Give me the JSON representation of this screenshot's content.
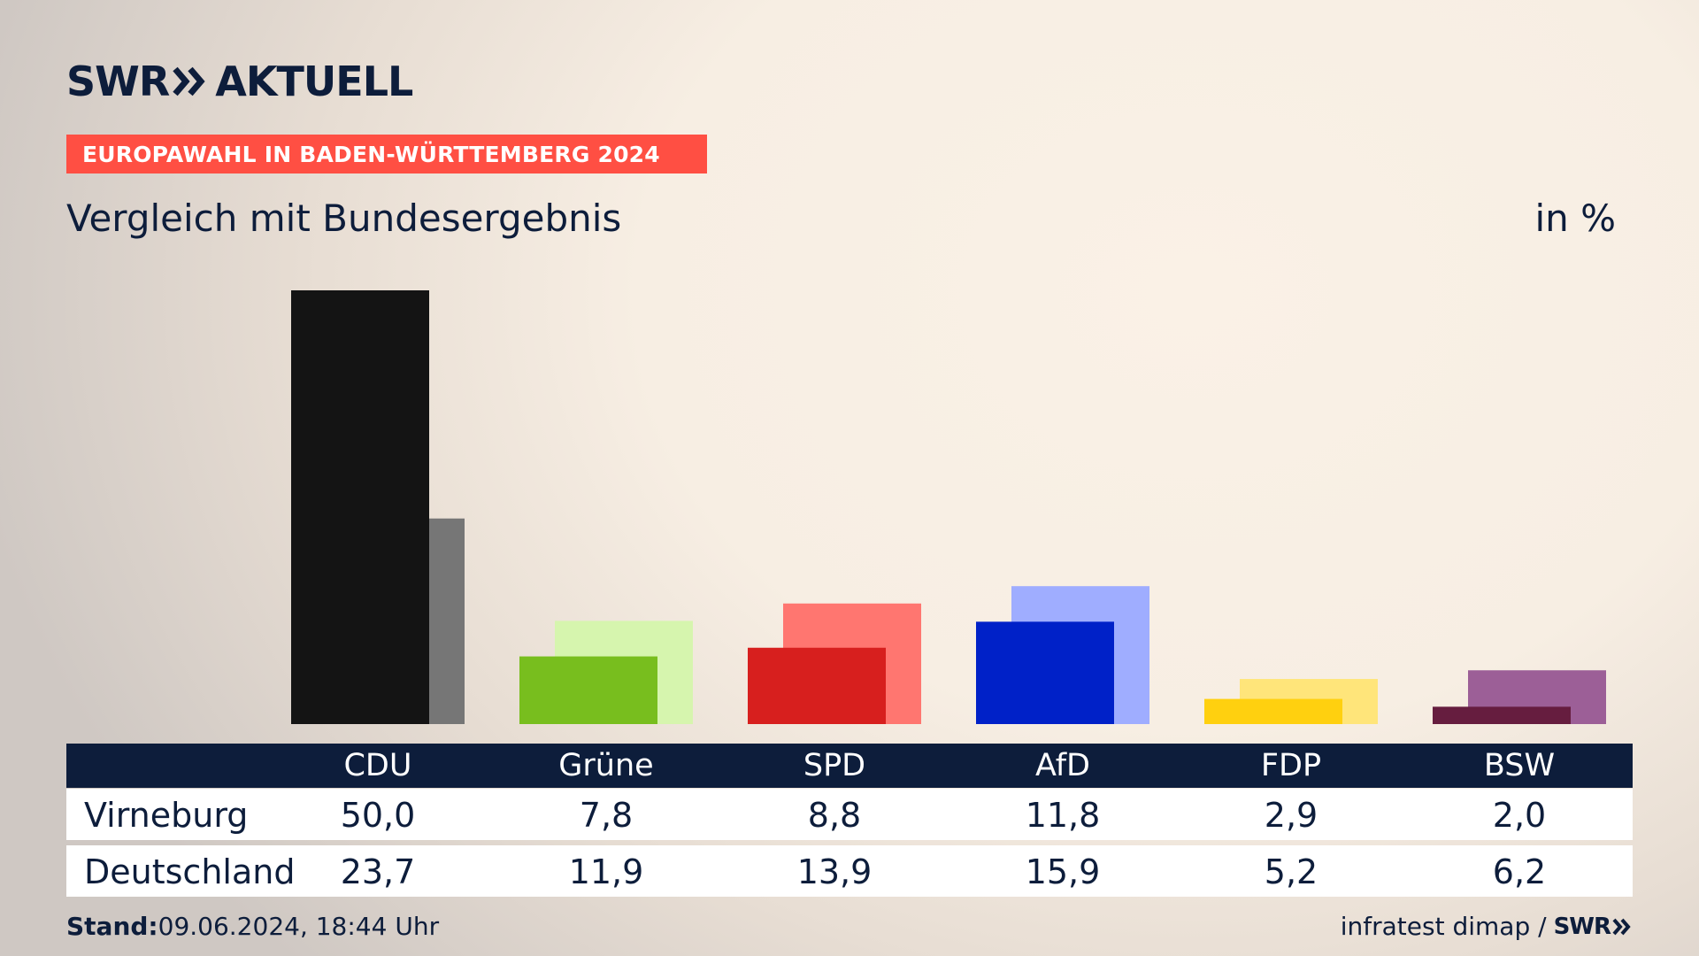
{
  "header": {
    "logo_left": "SWR",
    "logo_right": "AKTUELL",
    "banner": "EUROPAWAHL IN BADEN-WÜRTTEMBERG 2024",
    "subtitle": "Vergleich mit Bundesergebnis",
    "unit": "in %"
  },
  "chart_data": {
    "type": "bar",
    "title": "Vergleich mit Bundesergebnis",
    "ylabel": "in %",
    "categories": [
      "CDU",
      "Grüne",
      "SPD",
      "AfD",
      "FDP",
      "BSW"
    ],
    "series": [
      {
        "name": "Virneburg",
        "values": [
          50.0,
          7.8,
          8.8,
          11.8,
          2.9,
          2.0
        ],
        "colors": [
          "#141414",
          "#78be1e",
          "#d71f1e",
          "#0021c8",
          "#ffd00f",
          "#661d3f"
        ]
      },
      {
        "name": "Deutschland",
        "values": [
          23.7,
          11.9,
          13.9,
          15.9,
          5.2,
          6.2
        ],
        "colors": [
          "#767676",
          "#d6f5ae",
          "#ff7670",
          "#9fadff",
          "#ffe57a",
          "#9c5f97"
        ]
      }
    ],
    "ylim": [
      0,
      50
    ],
    "grid": false,
    "legend": "table below chart"
  },
  "table": {
    "columns": [
      "CDU",
      "Grüne",
      "SPD",
      "AfD",
      "FDP",
      "BSW"
    ],
    "rows": [
      {
        "label": "Virneburg",
        "values": [
          "50,0",
          "7,8",
          "8,8",
          "11,8",
          "2,9",
          "2,0"
        ]
      },
      {
        "label": "Deutschland",
        "values": [
          "23,7",
          "11,9",
          "13,9",
          "15,9",
          "5,2",
          "6,2"
        ]
      }
    ]
  },
  "footer": {
    "stand_label": "Stand:",
    "stand_value": "09.06.2024, 18:44 Uhr",
    "source": "infratest dimap /",
    "source_logo": "SWR"
  }
}
